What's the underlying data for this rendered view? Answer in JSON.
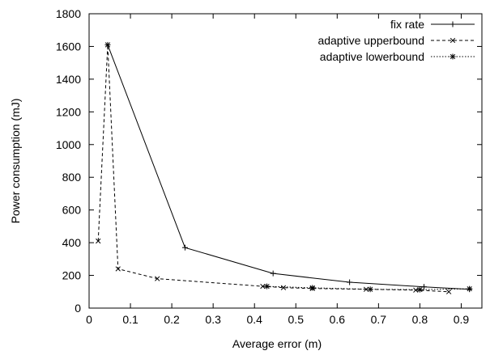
{
  "chart_data": {
    "type": "line",
    "title": "",
    "xlabel": "Average error (m)",
    "ylabel": "Power consumption (mJ)",
    "xlim": [
      0,
      0.95
    ],
    "ylim": [
      0,
      1800
    ],
    "xticks": [
      0,
      0.1,
      0.2,
      0.3,
      0.4,
      0.5,
      0.6,
      0.7,
      0.8,
      0.9
    ],
    "xtick_labels": [
      "0",
      "0.1",
      "0.2",
      "0.3",
      "0.4",
      "0.5",
      "0.6",
      "0.7",
      "0.8",
      "0.9"
    ],
    "yticks": [
      0,
      200,
      400,
      600,
      800,
      1000,
      1200,
      1400,
      1600,
      1800
    ],
    "ytick_labels": [
      "0",
      "200",
      "400",
      "600",
      "800",
      "1000",
      "1200",
      "1400",
      "1600",
      "1800"
    ],
    "grid": false,
    "legend_position": "top-right",
    "series": [
      {
        "name": "fix rate",
        "line_style": "solid",
        "marker": "plus",
        "color": "#000000",
        "points": [
          [
            0.045,
            1610
          ],
          [
            0.232,
            370
          ],
          [
            0.445,
            212
          ],
          [
            0.63,
            158
          ],
          [
            0.81,
            130
          ],
          [
            0.92,
            115
          ]
        ]
      },
      {
        "name": "adaptive upperbound",
        "line_style": "dashed",
        "marker": "cross",
        "color": "#000000",
        "points": [
          [
            0.022,
            410
          ],
          [
            0.045,
            1610
          ],
          [
            0.07,
            240
          ],
          [
            0.165,
            180
          ],
          [
            0.42,
            133
          ],
          [
            0.47,
            125
          ],
          [
            0.54,
            120
          ],
          [
            0.67,
            115
          ],
          [
            0.79,
            110
          ],
          [
            0.87,
            100
          ]
        ]
      },
      {
        "name": "adaptive lowerbound",
        "line_style": "dotted",
        "marker": "star",
        "color": "#000000",
        "points": [
          [
            0.43,
            133
          ],
          [
            0.54,
            124
          ],
          [
            0.68,
            115
          ],
          [
            0.8,
            113
          ],
          [
            0.92,
            118
          ]
        ]
      }
    ]
  }
}
